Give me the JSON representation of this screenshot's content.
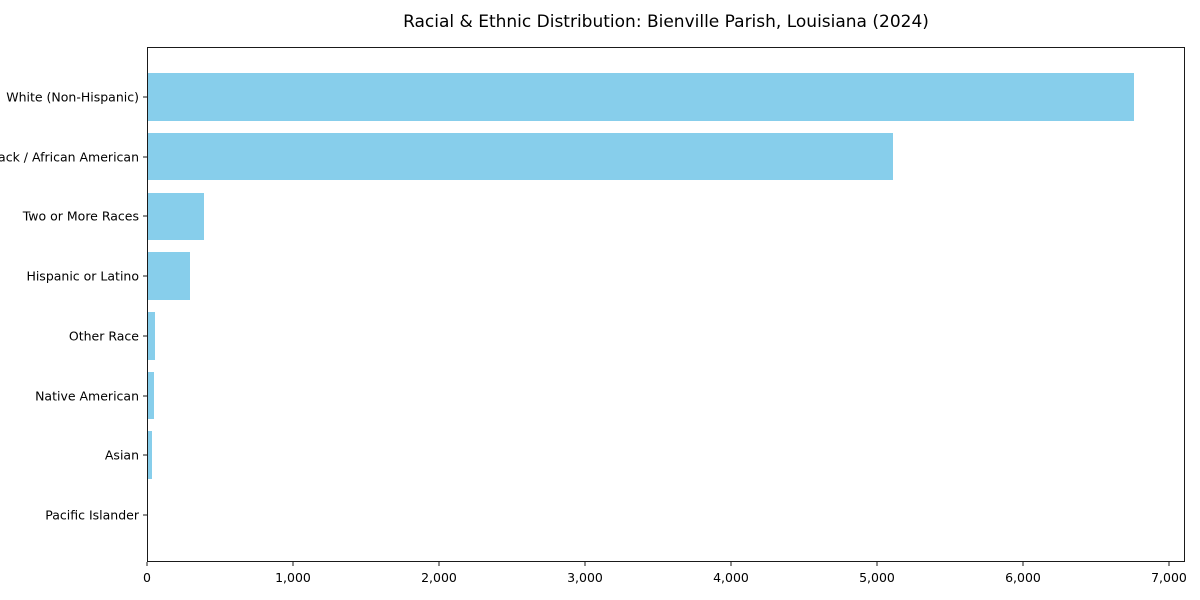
{
  "title": "Racial & Ethnic Distribution: Bienville Parish, Louisiana (2024)",
  "chart_data": {
    "type": "bar",
    "orientation": "horizontal",
    "title": "Racial & Ethnic Distribution: Bienville Parish, Louisiana (2024)",
    "categories": [
      "White (Non-Hispanic)",
      "Black / African American",
      "Two or More Races",
      "Hispanic or Latino",
      "Other Race",
      "Native American",
      "Asian",
      "Pacific Islander"
    ],
    "values": [
      6750,
      5100,
      385,
      290,
      50,
      38,
      26,
      0
    ],
    "xlabel": "",
    "ylabel": "",
    "xlim": [
      0,
      7100
    ],
    "x_ticks": [
      0,
      1000,
      2000,
      3000,
      4000,
      5000,
      6000,
      7000
    ],
    "x_tick_labels": [
      "0",
      "1,000",
      "2,000",
      "3,000",
      "4,000",
      "5,000",
      "6,000",
      "7,000"
    ],
    "bar_color": "#87CEEB",
    "frame_color": "#1a1a1a",
    "text_color": "#000000",
    "background_color": "#ffffff",
    "grid": false,
    "legend": null,
    "largest_category_on_top": true
  }
}
